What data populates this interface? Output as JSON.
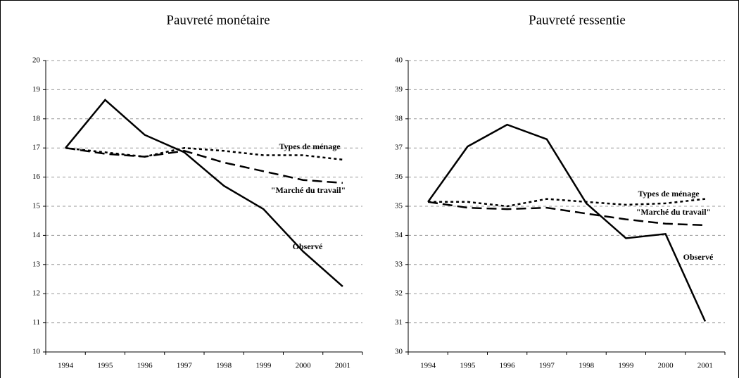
{
  "chart_data": [
    {
      "type": "line",
      "title": "Pauvreté monétaire",
      "categories": [
        "1994",
        "1995",
        "1996",
        "1997",
        "1998",
        "1999",
        "2000",
        "2001"
      ],
      "series": [
        {
          "name": "Observé",
          "color": "#000000",
          "line_style": "solid",
          "values": [
            17.0,
            18.65,
            17.45,
            16.85,
            15.7,
            14.9,
            13.45,
            12.25
          ]
        },
        {
          "name": "Types de ménage",
          "color": "#000000",
          "line_style": "dotted",
          "values": [
            17.0,
            16.85,
            16.7,
            17.0,
            16.9,
            16.75,
            16.75,
            16.6
          ]
        },
        {
          "name": "\"Marché du travail\"",
          "color": "#000000",
          "line_style": "dashed",
          "values": [
            17.0,
            16.8,
            16.7,
            16.9,
            16.5,
            16.2,
            15.9,
            15.8
          ]
        }
      ],
      "ylim": [
        10,
        20
      ],
      "yticks": [
        10,
        11,
        12,
        13,
        14,
        15,
        16,
        17,
        18,
        19,
        20
      ],
      "grid": true
    },
    {
      "type": "line",
      "title": "Pauvreté ressentie",
      "categories": [
        "1994",
        "1995",
        "1996",
        "1997",
        "1998",
        "1999",
        "2000",
        "2001"
      ],
      "series": [
        {
          "name": "Observé",
          "color": "#000000",
          "line_style": "solid",
          "values": [
            35.15,
            37.05,
            37.8,
            37.3,
            35.1,
            33.9,
            34.05,
            31.05
          ]
        },
        {
          "name": "Types de ménage",
          "color": "#000000",
          "line_style": "dotted",
          "values": [
            35.15,
            35.15,
            35.0,
            35.25,
            35.15,
            35.05,
            35.1,
            35.25
          ]
        },
        {
          "name": "\"Marché du travail\"",
          "color": "#000000",
          "line_style": "dashed",
          "values": [
            35.15,
            34.95,
            34.9,
            34.95,
            34.75,
            34.55,
            34.4,
            34.35
          ]
        }
      ],
      "ylim": [
        30,
        40
      ],
      "yticks": [
        30,
        31,
        32,
        33,
        34,
        35,
        36,
        37,
        38,
        39,
        40
      ],
      "grid": true
    }
  ]
}
